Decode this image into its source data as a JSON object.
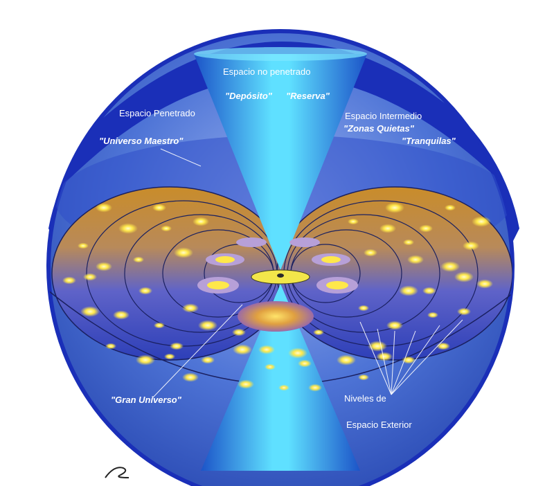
{
  "labels": {
    "no_penetrado": "Espacio no penetrado",
    "deposito": "\"Depósito\"",
    "reserva": "\"Reserva\"",
    "penetrado": "Espacio Penetrado",
    "universo_maestro": "\"Universo Maestro\"",
    "intermedio": "Espacio Intermedio",
    "zonas_quietas": "\"Zonas Quietas\"",
    "tranquilas": "\"Tranquilas\"",
    "gran_universo": "\"Gran Universo\"",
    "niveles": "Niveles de",
    "espacio_exterior": "Espacio Exterior"
  },
  "colors": {
    "outer_rim": "#1a2fb8",
    "sphere_blue": "#3f6fd8",
    "cone_cyan": "#36c8f0",
    "torus_gold": "#c8922e",
    "galaxy_yellow": "#ffe84a",
    "paradise_disc": "#f2e64a"
  }
}
